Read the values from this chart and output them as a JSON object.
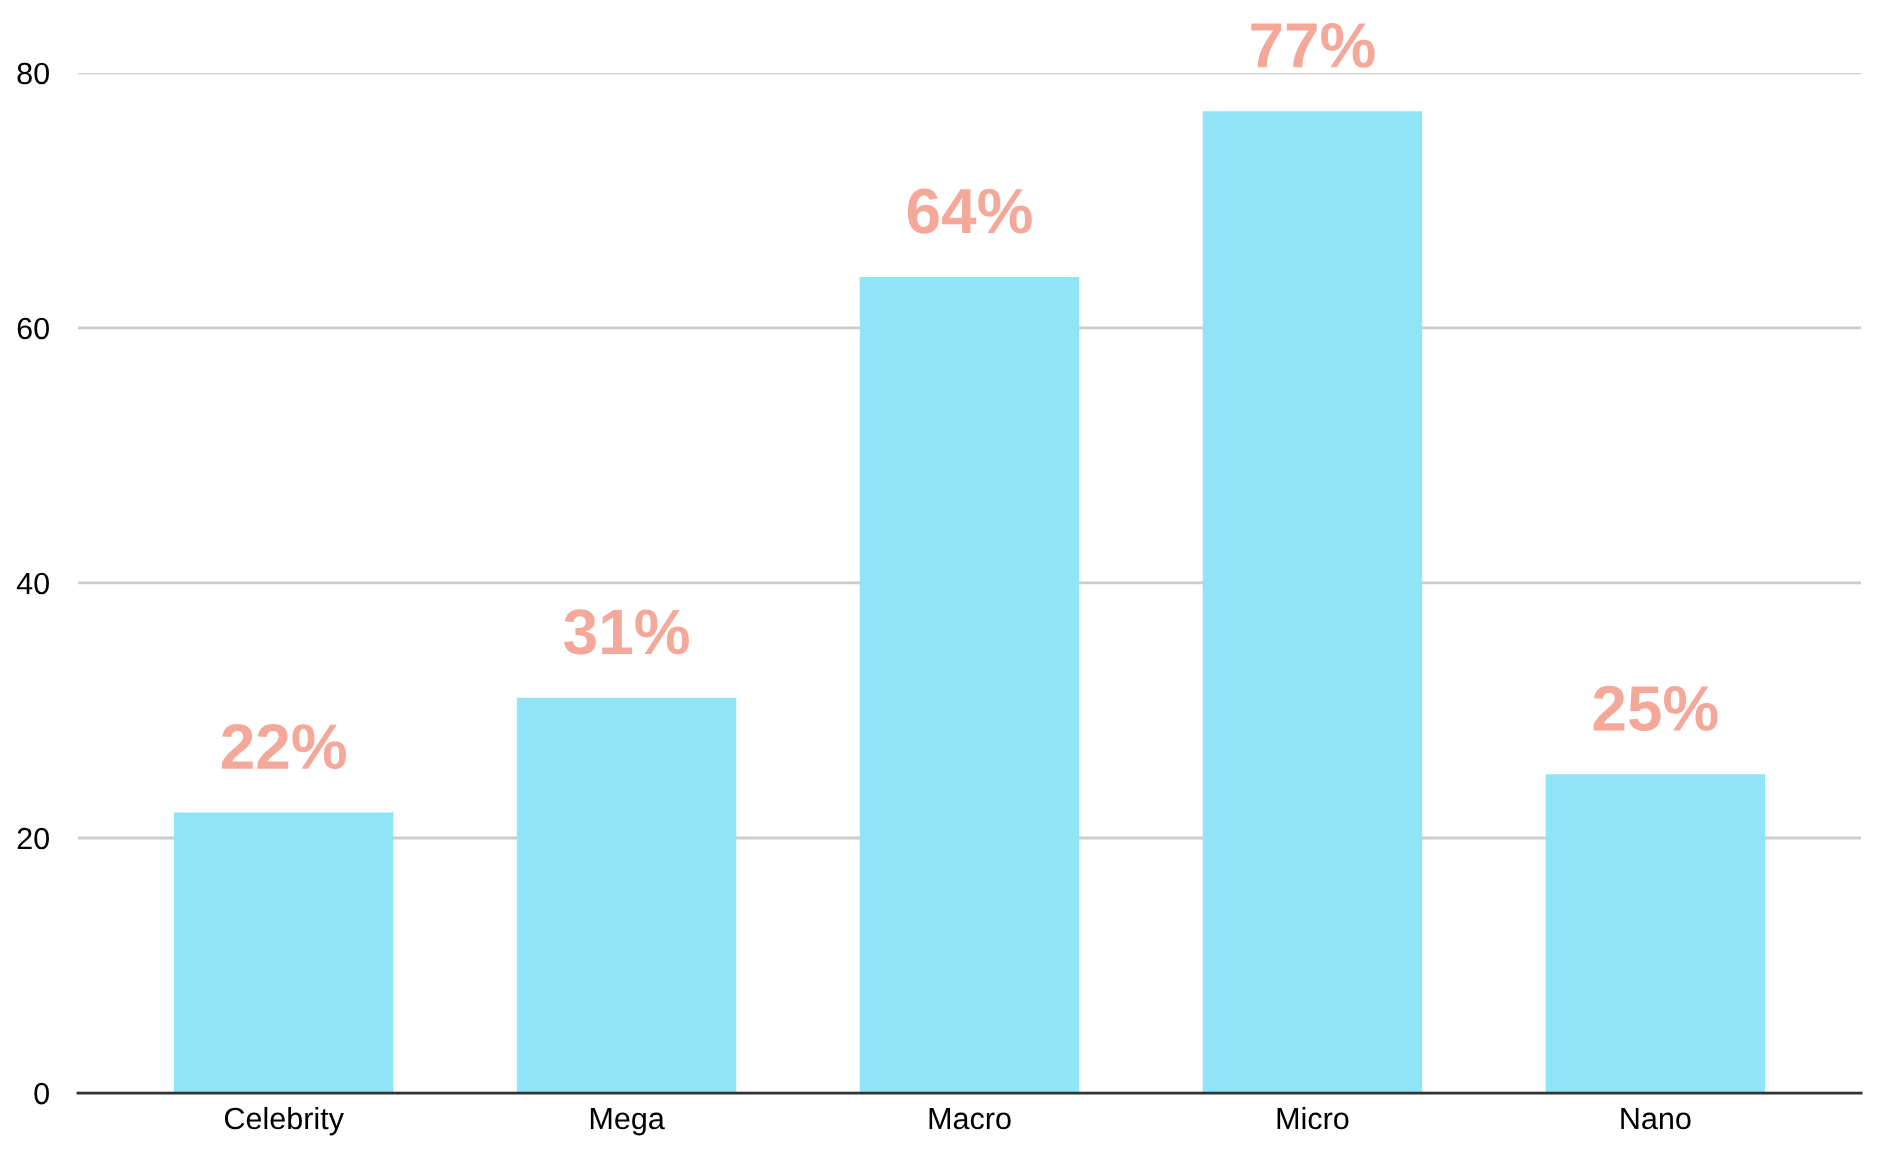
{
  "chart_data": {
    "type": "bar",
    "categories": [
      "Celebrity",
      "Mega",
      "Macro",
      "Micro",
      "Nano"
    ],
    "values": [
      22,
      31,
      64,
      77,
      25
    ],
    "value_labels": [
      "22%",
      "31%",
      "64%",
      "77%",
      "25%"
    ],
    "color": "#8fe5f7",
    "ylim": [
      0,
      80
    ],
    "yticks": [
      0,
      20,
      40,
      60,
      80
    ],
    "grid": "y",
    "legend": false
  }
}
